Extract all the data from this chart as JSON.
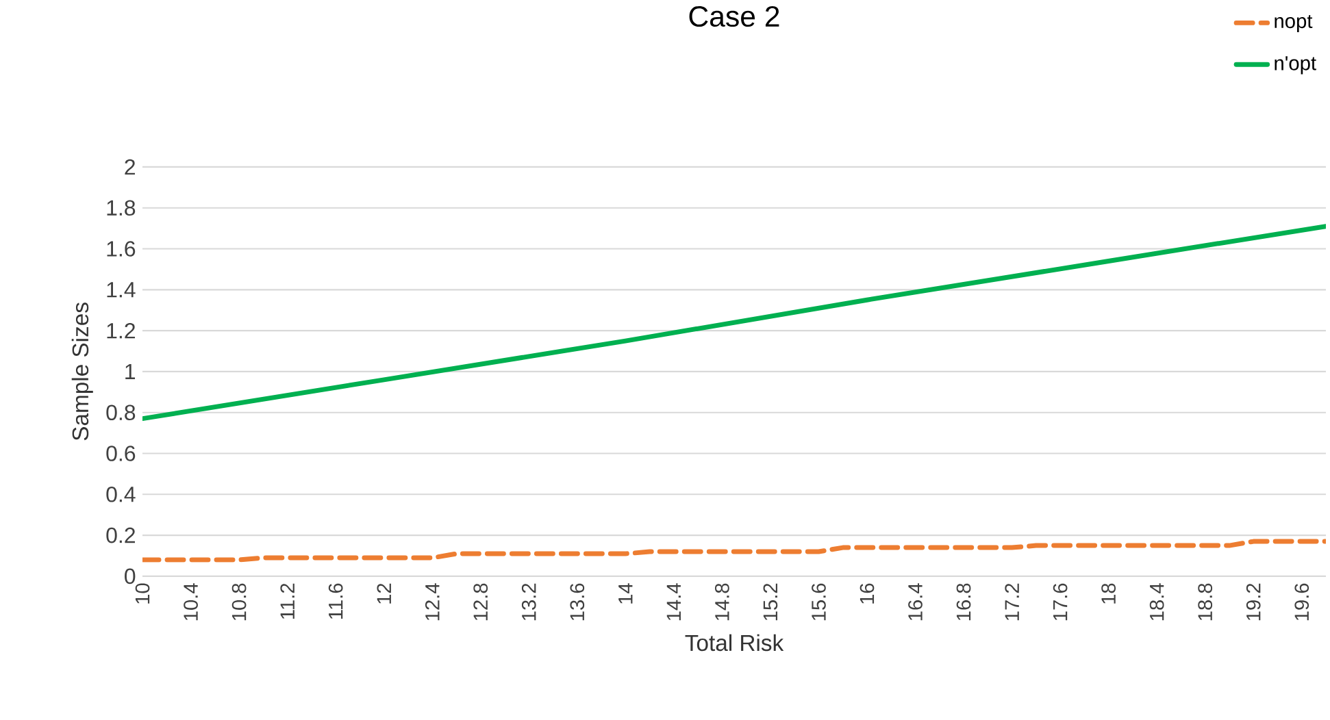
{
  "chart_data": {
    "type": "line",
    "title": "Case 2",
    "xlabel": "Total Risk",
    "ylabel": "Sample Sizes",
    "xlim": [
      10,
      19.8
    ],
    "xticks": [
      10,
      10.4,
      10.8,
      11.2,
      11.6,
      12,
      12.4,
      12.8,
      13.2,
      13.6,
      14,
      14.4,
      14.8,
      15.2,
      15.6,
      16,
      16.4,
      16.8,
      17.2,
      17.6,
      18,
      18.4,
      18.8,
      19.2,
      19.6
    ],
    "ylim": [
      0,
      2
    ],
    "yticks": [
      0,
      0.2,
      0.4,
      0.6,
      0.8,
      1,
      1.2,
      1.4,
      1.6,
      1.8,
      2
    ],
    "grid": "y",
    "legend": "top right",
    "series": [
      {
        "name": "nopt",
        "color": "#ed7d31",
        "line_style": "dashed",
        "x": [
          10,
          10.8,
          11,
          12.4,
          12.6,
          14,
          14.2,
          15.6,
          15.8,
          17.2,
          17.4,
          19,
          19.2,
          19.8
        ],
        "values": [
          0.08,
          0.08,
          0.09,
          0.09,
          0.11,
          0.11,
          0.12,
          0.12,
          0.14,
          0.14,
          0.15,
          0.15,
          0.17,
          0.17
        ]
      },
      {
        "name": "n'opt",
        "color": "#00b050",
        "line_style": "solid",
        "x": [
          10,
          12,
          14,
          16,
          18,
          19.8
        ],
        "values": [
          0.77,
          0.96,
          1.15,
          1.35,
          1.54,
          1.71
        ]
      }
    ]
  }
}
